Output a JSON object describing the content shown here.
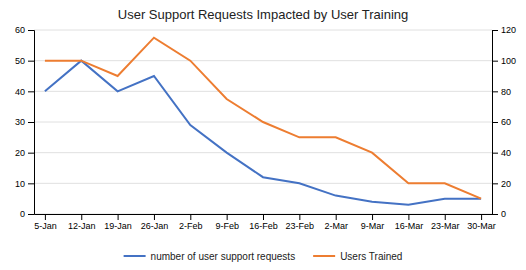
{
  "chart_data": {
    "type": "line",
    "title": "User Support Requests Impacted by User Training",
    "categories": [
      "5-Jan",
      "12-Jan",
      "19-Jan",
      "26-Jan",
      "2-Feb",
      "9-Feb",
      "16-Feb",
      "23-Feb",
      "2-Mar",
      "9-Mar",
      "16-Mar",
      "23-Mar",
      "30-Mar"
    ],
    "series": [
      {
        "name": "number of user support requests",
        "color": "#4472C4",
        "values": [
          40,
          50,
          40,
          45,
          29,
          20,
          12,
          10,
          6,
          4,
          3,
          5,
          5
        ]
      },
      {
        "name": "Users Trained",
        "color": "#ED7D31",
        "axis": "y2",
        "values": [
          100,
          100,
          90,
          115,
          100,
          75,
          60,
          50,
          50,
          40,
          20,
          20,
          10
        ]
      }
    ],
    "ylim": [
      0,
      60
    ],
    "yticks": [
      0,
      10,
      20,
      30,
      40,
      50,
      60
    ],
    "y2lim": [
      0,
      120
    ],
    "y2ticks": [
      0,
      20,
      40,
      60,
      80,
      100,
      120
    ],
    "grid": true,
    "legend": "bottom"
  }
}
